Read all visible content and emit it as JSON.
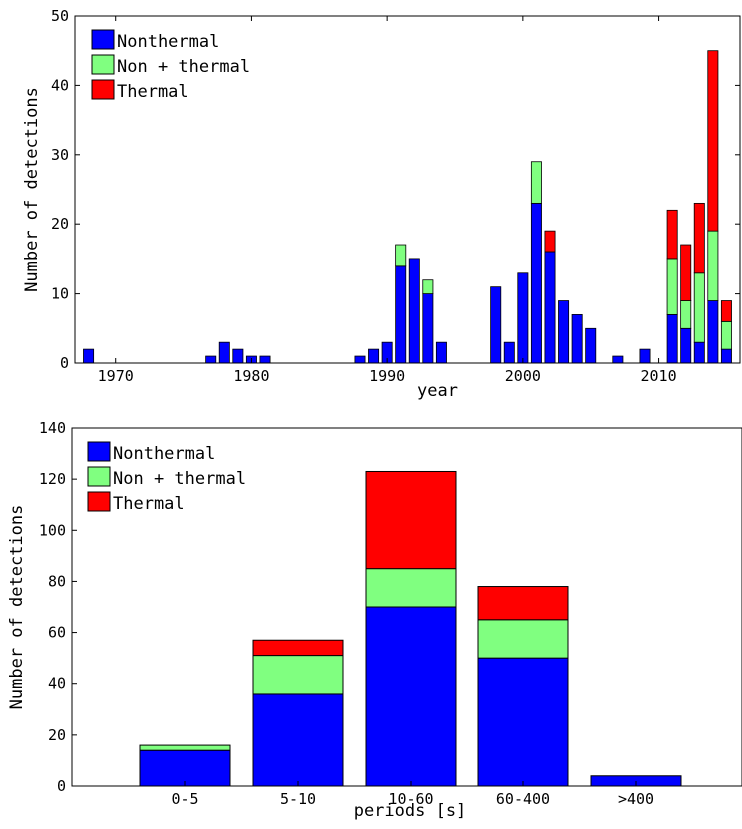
{
  "colors": {
    "nonthermal": "#0000ff",
    "non_plus_thermal": "#80ff80",
    "thermal": "#ff0000"
  },
  "chart_data": [
    {
      "type": "bar",
      "stacked": true,
      "xlabel": "year",
      "ylabel": "Number of detections",
      "xlim": [
        1967,
        2016
      ],
      "ylim": [
        0,
        50
      ],
      "x_ticks": [
        1970,
        1980,
        1990,
        2000,
        2010
      ],
      "y_ticks": [
        0,
        10,
        20,
        30,
        40,
        50
      ],
      "legend": [
        "Nonthermal",
        "Non + thermal",
        "Thermal"
      ],
      "legend_position": "top-left",
      "x": [
        1968,
        1977,
        1978,
        1979,
        1980,
        1981,
        1988,
        1989,
        1990,
        1991,
        1992,
        1993,
        1994,
        1998,
        1999,
        2000,
        2001,
        2002,
        2003,
        2004,
        2005,
        2007,
        2009,
        2011,
        2012,
        2013,
        2014,
        2015
      ],
      "series": [
        {
          "name": "Nonthermal",
          "values": [
            2,
            1,
            3,
            2,
            1,
            1,
            1,
            2,
            3,
            14,
            15,
            10,
            3,
            11,
            3,
            13,
            23,
            16,
            9,
            7,
            5,
            1,
            2,
            7,
            5,
            3,
            9,
            2
          ]
        },
        {
          "name": "Non + thermal",
          "values": [
            0,
            0,
            0,
            0,
            0,
            0,
            0,
            0,
            0,
            3,
            0,
            2,
            0,
            0,
            0,
            0,
            6,
            0,
            0,
            0,
            0,
            0,
            0,
            8,
            4,
            10,
            10,
            4
          ]
        },
        {
          "name": "Thermal",
          "values": [
            0,
            0,
            0,
            0,
            0,
            0,
            0,
            0,
            0,
            0,
            0,
            0,
            0,
            0,
            0,
            0,
            0,
            3,
            0,
            0,
            0,
            0,
            0,
            7,
            8,
            10,
            26,
            3
          ]
        }
      ]
    },
    {
      "type": "bar",
      "stacked": true,
      "xlabel": "periods [s]",
      "ylabel": "Number of detections",
      "ylim": [
        0,
        140
      ],
      "y_ticks": [
        0,
        20,
        40,
        60,
        80,
        100,
        120,
        140
      ],
      "categories": [
        "0-5",
        "5-10",
        "10-60",
        "60-400",
        ">400"
      ],
      "legend": [
        "Nonthermal",
        "Non + thermal",
        "Thermal"
      ],
      "legend_position": "top-left",
      "series": [
        {
          "name": "Nonthermal",
          "values": [
            14,
            36,
            70,
            50,
            4
          ]
        },
        {
          "name": "Non + thermal",
          "values": [
            2,
            15,
            15,
            15,
            0
          ]
        },
        {
          "name": "Thermal",
          "values": [
            0,
            6,
            38,
            13,
            0
          ]
        }
      ]
    }
  ]
}
